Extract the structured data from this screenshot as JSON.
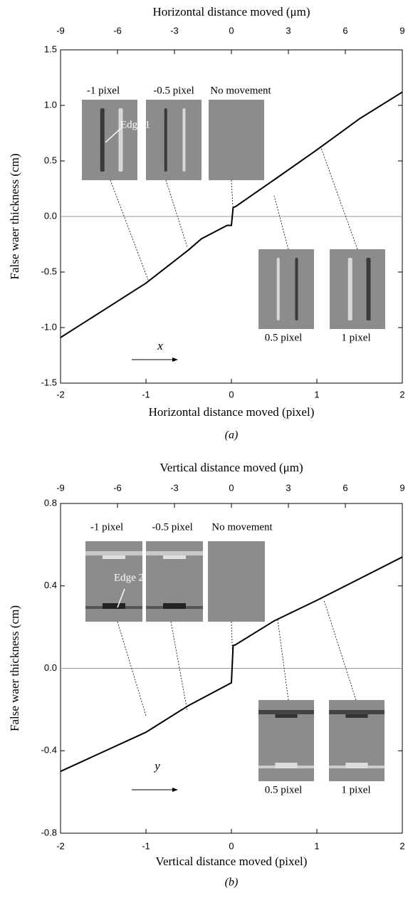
{
  "chart_data": [
    {
      "type": "line",
      "x_label": "Horizontal distance moved (pixel)",
      "x2_label": "Horizontal distance moved (μm)",
      "y_label": "False waer thickness (cm)",
      "caption": "(a)",
      "x": [
        -2,
        -1,
        -0.5,
        -0.35,
        -0.05,
        0,
        0.02,
        0.05,
        0.5,
        1,
        1.5,
        2
      ],
      "values": [
        -1.09,
        -0.6,
        -0.3,
        -0.2,
        -0.08,
        -0.08,
        0.08,
        0.09,
        0.33,
        0.6,
        0.88,
        1.12
      ],
      "color": "#000000",
      "xlim": [
        -2,
        2
      ],
      "xticks": [
        -2,
        -1,
        0,
        1,
        2
      ],
      "x2lim": [
        -9,
        9
      ],
      "x2ticks": [
        -9,
        -6,
        -3,
        0,
        3,
        6,
        9
      ],
      "ylim": [
        -1.5,
        1.5
      ],
      "yticks": [
        -1.5,
        {
          "value": -1,
          "label": "-1.0"
        },
        -0.5,
        {
          "value": 0,
          "label": "0.0"
        },
        0.5,
        {
          "value": 1,
          "label": "1.0"
        },
        1.5
      ],
      "inset_labels": [
        "-1 pixel",
        "-0.5 pixel",
        "No movement",
        "0.5 pixel",
        "1 pixel"
      ],
      "edge_label": "Edge 1",
      "direction_label": "x"
    },
    {
      "type": "line",
      "x_label": "Vertical distance moved (pixel)",
      "x2_label": "Vertical distance moved (μm)",
      "y_label": "False waer thickness (cm)",
      "caption": "(b)",
      "x": [
        -2,
        -1,
        -0.5,
        0,
        0.02,
        0.05,
        0.5,
        1,
        2
      ],
      "values": [
        -0.5,
        -0.31,
        -0.18,
        -0.07,
        0.11,
        0.115,
        0.23,
        0.33,
        0.54
      ],
      "color": "#000000",
      "xlim": [
        -2,
        2
      ],
      "xticks": [
        -2,
        -1,
        0,
        1,
        2
      ],
      "x2lim": [
        -9,
        9
      ],
      "x2ticks": [
        -9,
        -6,
        -3,
        0,
        3,
        6,
        9
      ],
      "ylim": [
        -0.8,
        0.8
      ],
      "yticks": [
        -0.8,
        -0.4,
        {
          "value": 0,
          "label": "0.0"
        },
        0.4,
        0.8
      ],
      "inset_labels": [
        "-1 pixel",
        "-0.5 pixel",
        "No movement",
        "0.5 pixel",
        "1 pixel"
      ],
      "edge_label": "Edge 2",
      "direction_label": "y"
    }
  ]
}
